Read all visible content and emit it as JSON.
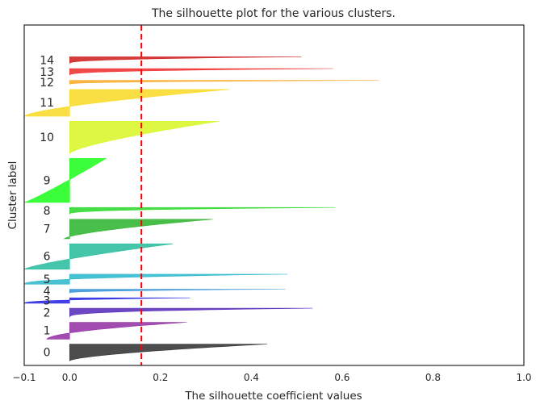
{
  "chart_data": {
    "type": "area",
    "title": "The silhouette plot for the various clusters.",
    "xlabel": "The silhouette coefficient values",
    "ylabel": "Cluster label",
    "xlim": [
      -0.1,
      1.0
    ],
    "ylim": [
      0,
      750
    ],
    "x_ticks": [
      -0.1,
      0.0,
      0.2,
      0.4,
      0.6,
      0.8,
      1.0
    ],
    "x_tick_labels": [
      "−0.1",
      "0.0",
      "0.2",
      "0.4",
      "0.6",
      "0.8",
      "1.0"
    ],
    "grid": false,
    "average_score_line": 0.158,
    "average_line_color": "#ff0000",
    "clusters": [
      {
        "label": "0",
        "y_lower": 10,
        "size": 38,
        "max": 0.435,
        "min": 0.0,
        "shape": 1.6,
        "color": "#262626"
      },
      {
        "label": "1",
        "y_lower": 58,
        "size": 38,
        "max": 0.258,
        "min": -0.05,
        "shape": 1.8,
        "color": "#8e24a0"
      },
      {
        "label": "2",
        "y_lower": 106,
        "size": 21,
        "max": 0.535,
        "min": 0.0,
        "shape": 3.0,
        "color": "#4b1fb5"
      },
      {
        "label": "3",
        "y_lower": 137,
        "size": 13,
        "max": 0.265,
        "min": -0.1,
        "shape": 2.5,
        "color": "#1a1adf"
      },
      {
        "label": "4",
        "y_lower": 160,
        "size": 9,
        "max": 0.475,
        "min": 0.0,
        "shape": 2.2,
        "color": "#2a8dd4"
      },
      {
        "label": "5",
        "y_lower": 179,
        "size": 23,
        "max": 0.48,
        "min": -0.1,
        "shape": 2.5,
        "color": "#20b4c8"
      },
      {
        "label": "6",
        "y_lower": 212,
        "size": 57,
        "max": 0.228,
        "min": -0.1,
        "shape": 1.3,
        "color": "#1cb896"
      },
      {
        "label": "7",
        "y_lower": 279,
        "size": 44,
        "max": 0.315,
        "min": -0.012,
        "shape": 1.5,
        "color": "#22b022"
      },
      {
        "label": "8",
        "y_lower": 333,
        "size": 16,
        "max": 0.585,
        "min": 0.0,
        "shape": 3.0,
        "color": "#1ed61e"
      },
      {
        "label": "9",
        "y_lower": 359,
        "size": 98,
        "max": 0.08,
        "min": -0.1,
        "shape": 0.9,
        "color": "#11ff11"
      },
      {
        "label": "10",
        "y_lower": 467,
        "size": 72,
        "max": 0.33,
        "min": 0.0,
        "shape": 1.4,
        "color": "#d5f51a"
      },
      {
        "label": "11",
        "y_lower": 549,
        "size": 60,
        "max": 0.352,
        "min": -0.1,
        "shape": 1.5,
        "color": "#f9d81b"
      },
      {
        "label": "12",
        "y_lower": 619,
        "size": 10,
        "max": 0.68,
        "min": 0.0,
        "shape": 3.0,
        "color": "#f8a51c"
      },
      {
        "label": "13",
        "y_lower": 639,
        "size": 16,
        "max": 0.58,
        "min": 0.0,
        "shape": 3.0,
        "color": "#ee2222"
      },
      {
        "label": "14",
        "y_lower": 665,
        "size": 16,
        "max": 0.51,
        "min": 0.0,
        "shape": 2.8,
        "color": "#cc1111"
      }
    ]
  }
}
